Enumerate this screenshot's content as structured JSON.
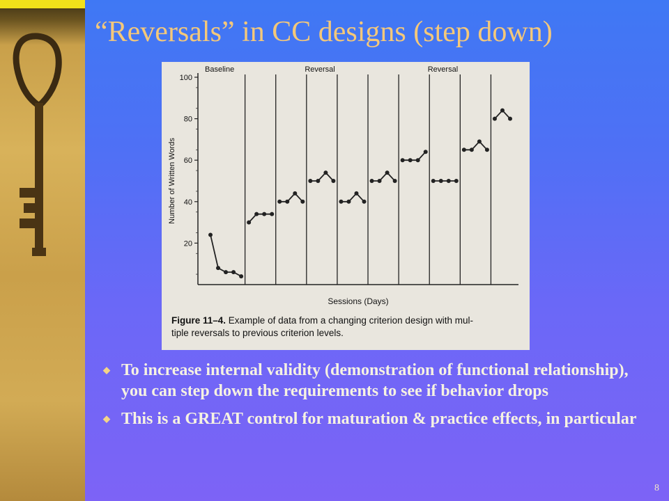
{
  "slide": {
    "title": "“Reversals” in CC designs (step down)",
    "page_number": "8",
    "bullets": [
      "To increase internal validity (demonstration of functional relationship), you can step down the requirements to see if behavior drops",
      "This is a GREAT control for maturation & practice effects, in particular"
    ],
    "colors": {
      "title": "#f4c87a",
      "bullet_text": "#f6f2e2",
      "bullet_marker": "#f3d488"
    }
  },
  "chart_data": {
    "type": "line",
    "phase_labels": [
      "Baseline",
      "Reversal",
      "Reversal"
    ],
    "ylabel": "Number of Written Words",
    "xlabel": "Sessions (Days)",
    "ylim": [
      0,
      100
    ],
    "yticks": [
      20,
      40,
      60,
      80,
      100
    ],
    "caption_bold": "Figure 11–4.",
    "caption_text": "Example of data from a changing criterion design with multiple reversals to previous criterion levels.",
    "caption_line1": "Example of data from a changing criterion design with mul-",
    "caption_line2": "tiple reversals to previous criterion levels.",
    "phase_lines_after_session": [
      5,
      9,
      13,
      17,
      21,
      25,
      29,
      33,
      37
    ],
    "phases": [
      {
        "sessions": [
          1,
          2,
          3,
          4,
          5
        ],
        "values": [
          24,
          8,
          6,
          6,
          4
        ]
      },
      {
        "sessions": [
          6,
          7,
          8,
          9
        ],
        "values": [
          30,
          34,
          34,
          34
        ]
      },
      {
        "sessions": [
          10,
          11,
          12,
          13
        ],
        "values": [
          40,
          40,
          44,
          40
        ]
      },
      {
        "sessions": [
          14,
          15,
          16,
          17
        ],
        "values": [
          50,
          50,
          54,
          50
        ]
      },
      {
        "sessions": [
          18,
          19,
          20,
          21
        ],
        "values": [
          40,
          40,
          44,
          40
        ]
      },
      {
        "sessions": [
          22,
          23,
          24,
          25
        ],
        "values": [
          50,
          50,
          54,
          50
        ]
      },
      {
        "sessions": [
          26,
          27,
          28,
          29
        ],
        "values": [
          60,
          60,
          60,
          64
        ]
      },
      {
        "sessions": [
          30,
          31,
          32,
          33
        ],
        "values": [
          50,
          50,
          50,
          50
        ]
      },
      {
        "sessions": [
          34,
          35,
          36,
          37
        ],
        "values": [
          65,
          65,
          69,
          65
        ]
      },
      {
        "sessions": [
          38,
          39,
          40
        ],
        "values": [
          80,
          84,
          80
        ]
      }
    ]
  }
}
